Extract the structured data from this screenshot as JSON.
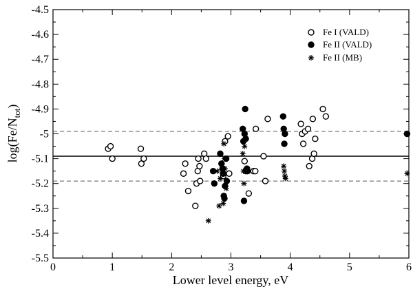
{
  "chart_data": {
    "type": "scatter",
    "title": "",
    "xlabel": "Lower level energy, eV",
    "ylabel_main": "log(Fe/N",
    "ylabel_sub": "tot",
    "ylabel_close": ")",
    "xlim": [
      0,
      6
    ],
    "ylim": [
      -5.5,
      -4.5
    ],
    "xticks": [
      0,
      1,
      2,
      3,
      4,
      5,
      6
    ],
    "yticks": [
      -5.5,
      -5.4,
      -5.3,
      -5.2,
      -5.1,
      -5.0,
      -4.9,
      -4.8,
      -4.7,
      -4.6,
      -4.5
    ],
    "ytick_labels": [
      "-5.5",
      "-5.4",
      "-5.3",
      "-5.2",
      "-5.1",
      "-5",
      "-4.9",
      "-4.8",
      "-4.7",
      "-4.6",
      "-4.5"
    ],
    "legend_position": "top-right",
    "reference_lines": [
      {
        "y": -5.09,
        "style": "solid"
      },
      {
        "y": -4.99,
        "style": "dashed"
      },
      {
        "y": -5.19,
        "style": "dashed"
      }
    ],
    "series": [
      {
        "name": "Fe I (VALD)",
        "marker": "open-circle",
        "points": [
          [
            0.93,
            -5.06
          ],
          [
            0.97,
            -5.05
          ],
          [
            1.0,
            -5.1
          ],
          [
            1.48,
            -5.06
          ],
          [
            1.49,
            -5.12
          ],
          [
            1.53,
            -5.1
          ],
          [
            2.2,
            -5.16
          ],
          [
            2.23,
            -5.12
          ],
          [
            2.28,
            -5.23
          ],
          [
            2.4,
            -5.29
          ],
          [
            2.42,
            -5.2
          ],
          [
            2.44,
            -5.15
          ],
          [
            2.45,
            -5.1
          ],
          [
            2.47,
            -5.13
          ],
          [
            2.48,
            -5.19
          ],
          [
            2.55,
            -5.08
          ],
          [
            2.58,
            -5.1
          ],
          [
            2.87,
            -5.17
          ],
          [
            2.9,
            -5.03
          ],
          [
            2.95,
            -5.01
          ],
          [
            2.97,
            -5.16
          ],
          [
            3.23,
            -5.11
          ],
          [
            3.25,
            -5.15
          ],
          [
            3.3,
            -5.24
          ],
          [
            3.38,
            -5.15
          ],
          [
            3.41,
            -5.15
          ],
          [
            3.42,
            -4.98
          ],
          [
            3.55,
            -5.09
          ],
          [
            3.58,
            -5.19
          ],
          [
            3.62,
            -4.94
          ],
          [
            4.18,
            -4.96
          ],
          [
            4.2,
            -5.0
          ],
          [
            4.22,
            -5.04
          ],
          [
            4.25,
            -4.99
          ],
          [
            4.3,
            -4.98
          ],
          [
            4.32,
            -5.13
          ],
          [
            4.37,
            -5.1
          ],
          [
            4.38,
            -4.94
          ],
          [
            4.4,
            -5.08
          ],
          [
            4.42,
            -5.02
          ],
          [
            4.55,
            -4.9
          ],
          [
            4.6,
            -4.93
          ]
        ]
      },
      {
        "name": "Fe II (VALD)",
        "marker": "filled-circle",
        "points": [
          [
            2.7,
            -5.15
          ],
          [
            2.72,
            -5.2
          ],
          [
            2.82,
            -5.08
          ],
          [
            2.84,
            -5.12
          ],
          [
            2.86,
            -5.14
          ],
          [
            2.87,
            -5.16
          ],
          [
            2.88,
            -5.25
          ],
          [
            2.89,
            -5.26
          ],
          [
            2.9,
            -5.21
          ],
          [
            2.92,
            -5.1
          ],
          [
            2.93,
            -5.19
          ],
          [
            3.2,
            -4.98
          ],
          [
            3.21,
            -5.03
          ],
          [
            3.22,
            -5.27
          ],
          [
            3.23,
            -5.0
          ],
          [
            3.24,
            -4.9
          ],
          [
            3.25,
            -5.02
          ],
          [
            3.27,
            -5.14
          ],
          [
            3.28,
            -5.15
          ],
          [
            3.88,
            -4.93
          ],
          [
            3.89,
            -4.98
          ],
          [
            3.9,
            -5.04
          ],
          [
            3.91,
            -5.0
          ],
          [
            5.97,
            -5.0
          ]
        ]
      },
      {
        "name": "Fe II (MB)",
        "marker": "asterisk",
        "points": [
          [
            2.62,
            -5.35
          ],
          [
            2.77,
            -5.15
          ],
          [
            2.8,
            -5.29
          ],
          [
            2.82,
            -5.18
          ],
          [
            2.85,
            -5.12
          ],
          [
            2.86,
            -5.15
          ],
          [
            2.87,
            -5.28
          ],
          [
            2.88,
            -5.04
          ],
          [
            2.89,
            -5.1
          ],
          [
            2.9,
            -5.14
          ],
          [
            2.92,
            -5.22
          ],
          [
            3.2,
            -5.08
          ],
          [
            3.21,
            -5.15
          ],
          [
            3.22,
            -5.2
          ],
          [
            3.23,
            -5.05
          ],
          [
            3.89,
            -5.13
          ],
          [
            3.9,
            -5.15
          ],
          [
            3.91,
            -5.17
          ],
          [
            3.92,
            -5.18
          ],
          [
            5.97,
            -5.16
          ]
        ]
      }
    ]
  }
}
